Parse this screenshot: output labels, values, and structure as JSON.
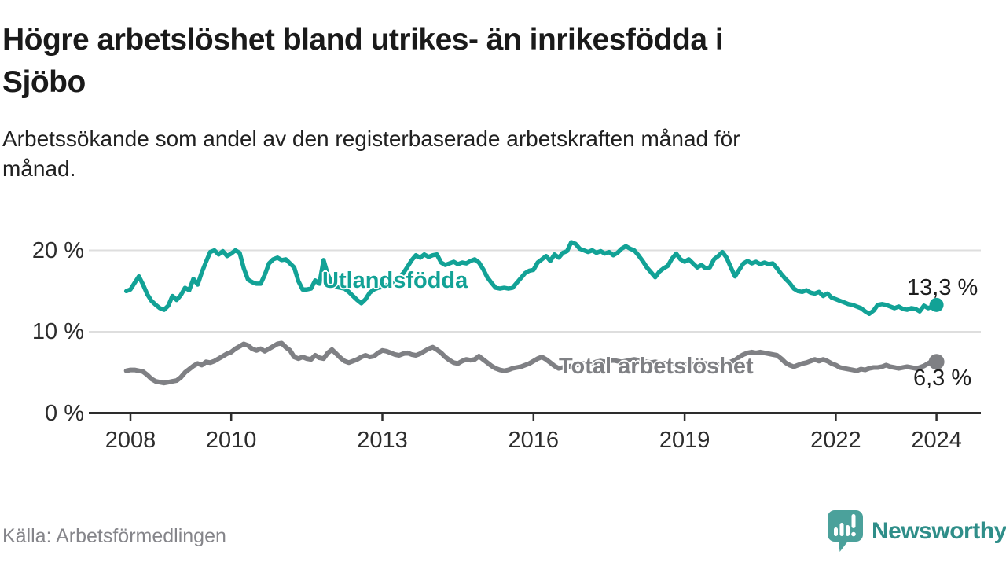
{
  "chart_data": {
    "type": "line",
    "title_lines": [
      "Högre arbetslöshet bland utrikes- än inrikesfödda i",
      "Sjöbo"
    ],
    "subtitle_lines": [
      "Arbetssökande som andel av den registerbaserade arbetskraften månad för",
      "månad."
    ],
    "source": "Källa: Arbetsförmedlingen",
    "y_unit": "%",
    "ylim": [
      0,
      22
    ],
    "grid": "horizontal",
    "x_start_year": 2007.9167,
    "x_step_years": 0.0833,
    "x_ticks": [
      {
        "label": "2008",
        "year": 2008
      },
      {
        "label": "2010",
        "year": 2010
      },
      {
        "label": "2013",
        "year": 2013
      },
      {
        "label": "2016",
        "year": 2016
      },
      {
        "label": "2019",
        "year": 2019
      },
      {
        "label": "2022",
        "year": 2022
      },
      {
        "label": "2024",
        "year": 2024
      }
    ],
    "y_ticks": [
      {
        "label": "20 %",
        "value": 20
      },
      {
        "label": "10 %",
        "value": 10
      },
      {
        "label": "0 %",
        "value": 0
      }
    ],
    "series": [
      {
        "name": "Utlandsfödda",
        "color": "#12a296",
        "end_label": "13,3 %",
        "end_value": 13.3,
        "values": [
          15.0,
          15.2,
          16.0,
          16.8,
          15.8,
          14.6,
          13.8,
          13.3,
          12.9,
          12.7,
          13.2,
          14.4,
          13.9,
          14.5,
          15.4,
          15.1,
          16.5,
          15.8,
          17.3,
          18.6,
          19.8,
          20.0,
          19.5,
          19.9,
          19.3,
          19.6,
          20.0,
          19.7,
          17.8,
          16.4,
          16.1,
          15.9,
          15.9,
          17.0,
          18.4,
          18.9,
          19.1,
          18.8,
          18.9,
          18.4,
          17.9,
          16.2,
          15.2,
          15.2,
          15.3,
          16.3,
          15.9,
          18.8,
          17.0,
          15.9,
          15.5,
          15.4,
          15.3,
          14.9,
          14.4,
          13.9,
          13.5,
          14.0,
          14.8,
          15.2,
          15.4,
          15.5,
          15.7,
          15.9,
          16.2,
          16.7,
          17.2,
          18.0,
          18.8,
          19.4,
          19.1,
          19.5,
          19.2,
          19.4,
          19.5,
          18.5,
          18.2,
          18.4,
          18.6,
          18.3,
          18.5,
          18.4,
          18.7,
          18.9,
          18.5,
          17.7,
          16.7,
          16.0,
          15.4,
          15.3,
          15.4,
          15.3,
          15.4,
          16.0,
          16.6,
          17.2,
          17.5,
          17.6,
          18.5,
          18.9,
          19.3,
          18.7,
          19.5,
          19.1,
          19.7,
          19.9,
          21.0,
          20.8,
          20.2,
          20.0,
          19.8,
          20.0,
          19.7,
          19.9,
          19.6,
          19.8,
          19.4,
          19.7,
          20.2,
          20.5,
          20.2,
          20.0,
          19.4,
          18.7,
          17.9,
          17.3,
          16.7,
          17.4,
          17.8,
          18.1,
          19.0,
          19.6,
          18.9,
          18.6,
          18.9,
          18.4,
          17.9,
          18.2,
          17.8,
          17.9,
          18.9,
          19.3,
          19.8,
          19.1,
          17.9,
          16.8,
          17.6,
          18.4,
          18.7,
          18.4,
          18.6,
          18.3,
          18.5,
          18.3,
          18.4,
          17.8,
          17.1,
          16.5,
          16.0,
          15.3,
          15.0,
          14.9,
          15.1,
          14.8,
          14.7,
          14.9,
          14.4,
          14.7,
          14.2,
          14.0,
          13.8,
          13.6,
          13.4,
          13.3,
          13.1,
          12.9,
          12.5,
          12.2,
          12.6,
          13.3,
          13.4,
          13.3,
          13.1,
          12.9,
          13.1,
          12.8,
          12.7,
          12.9,
          12.8,
          12.5,
          13.2,
          12.9,
          13.1,
          13.3
        ]
      },
      {
        "name": "Total arbetslöshet",
        "color": "#7f8084",
        "end_label": "6,3 %",
        "end_value": 6.3,
        "values": [
          5.2,
          5.3,
          5.3,
          5.2,
          5.1,
          4.7,
          4.2,
          3.9,
          3.8,
          3.7,
          3.8,
          3.9,
          4.0,
          4.4,
          5.0,
          5.4,
          5.8,
          6.1,
          5.9,
          6.3,
          6.2,
          6.4,
          6.7,
          7.0,
          7.3,
          7.5,
          7.9,
          8.2,
          8.5,
          8.3,
          7.9,
          7.7,
          7.9,
          7.6,
          7.9,
          8.2,
          8.5,
          8.6,
          8.1,
          7.7,
          6.9,
          6.7,
          6.9,
          6.7,
          6.6,
          7.1,
          6.8,
          6.7,
          7.4,
          7.8,
          7.3,
          6.8,
          6.4,
          6.2,
          6.4,
          6.6,
          6.9,
          7.1,
          6.9,
          7.0,
          7.4,
          7.7,
          7.6,
          7.4,
          7.2,
          7.1,
          7.3,
          7.4,
          7.2,
          7.1,
          7.3,
          7.6,
          7.9,
          8.1,
          7.8,
          7.4,
          6.9,
          6.5,
          6.2,
          6.1,
          6.4,
          6.6,
          6.5,
          6.6,
          7.0,
          6.6,
          6.2,
          5.8,
          5.5,
          5.3,
          5.2,
          5.3,
          5.5,
          5.6,
          5.7,
          5.9,
          6.1,
          6.4,
          6.7,
          6.9,
          6.6,
          6.2,
          5.8,
          5.5,
          5.6,
          5.7,
          5.8,
          5.9,
          6.0,
          6.1,
          6.2,
          6.1,
          6.3,
          6.4,
          6.3,
          6.4,
          6.5,
          6.4,
          6.3,
          6.4,
          6.5,
          6.6,
          6.5,
          6.4,
          6.3,
          6.2,
          6.3,
          6.2,
          6.1,
          6.2,
          6.1,
          6.0,
          6.1,
          6.0,
          6.1,
          6.0,
          5.9,
          6.0,
          6.1,
          6.0,
          6.1,
          6.0,
          6.1,
          6.2,
          6.3,
          6.5,
          6.9,
          7.2,
          7.4,
          7.5,
          7.4,
          7.5,
          7.4,
          7.3,
          7.2,
          7.1,
          6.7,
          6.2,
          5.9,
          5.7,
          5.9,
          6.1,
          6.2,
          6.4,
          6.6,
          6.4,
          6.6,
          6.4,
          6.1,
          5.9,
          5.6,
          5.5,
          5.4,
          5.3,
          5.2,
          5.4,
          5.3,
          5.5,
          5.6,
          5.6,
          5.7,
          5.9,
          5.7,
          5.6,
          5.5,
          5.6,
          5.7,
          5.6,
          5.5,
          5.6,
          5.8,
          6.1,
          6.4,
          6.3
        ]
      }
    ]
  },
  "footer": {
    "source": "Källa: Arbetsförmedlingen",
    "brand": "Newsworthy"
  },
  "colors": {
    "foreign_born_line": "#12a296",
    "total_line": "#7f8084",
    "axis": "#2d2d2d",
    "gridline": "#dedede",
    "title_text": "#1a1a1a",
    "source_text": "#85858a",
    "brand_bubble": "#4ba19b",
    "brand_text": "#2f8e89"
  }
}
